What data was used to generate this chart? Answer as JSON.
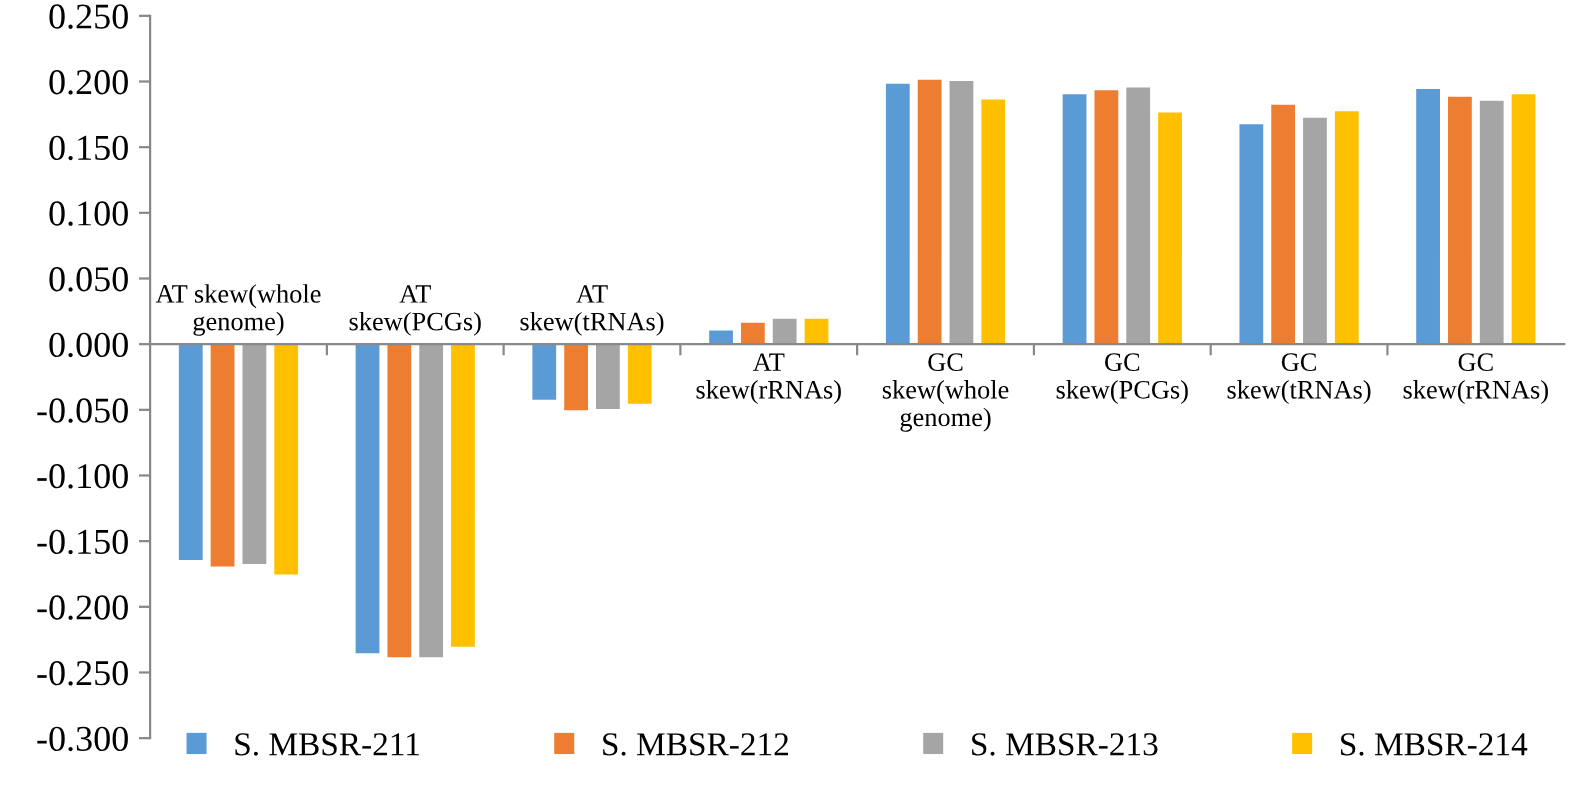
{
  "chart_data": {
    "type": "bar",
    "categories": [
      "AT skew(whole genome)",
      "AT skew(PCGs)",
      "AT skew(tRNAs)",
      "AT skew(rRNAs)",
      "GC skew(whole genome)",
      "GC skew(PCGs)",
      "GC skew(tRNAs)",
      "GC skew(rRNAs)"
    ],
    "series": [
      {
        "name": "S. MBSR-211",
        "color": "#5b9bd5",
        "values": [
          -0.165,
          -0.236,
          -0.043,
          0.011,
          0.199,
          0.191,
          0.168,
          0.195
        ]
      },
      {
        "name": "S. MBSR-212",
        "color": "#ed7d31",
        "values": [
          -0.17,
          -0.239,
          -0.051,
          0.017,
          0.202,
          0.194,
          0.183,
          0.189
        ]
      },
      {
        "name": "S. MBSR-213",
        "color": "#a5a5a5",
        "values": [
          -0.168,
          -0.239,
          -0.05,
          0.02,
          0.201,
          0.196,
          0.173,
          0.186
        ]
      },
      {
        "name": "S. MBSR-214",
        "color": "#ffc000",
        "values": [
          -0.176,
          -0.231,
          -0.046,
          0.02,
          0.187,
          0.177,
          0.178,
          0.191
        ]
      }
    ],
    "ylim": [
      -0.3,
      0.25
    ],
    "yticks": [
      {
        "value": -0.3,
        "label": "-0.300"
      },
      {
        "value": -0.25,
        "label": "-0.250"
      },
      {
        "value": -0.2,
        "label": "-0.200"
      },
      {
        "value": -0.15,
        "label": "-0.150"
      },
      {
        "value": -0.1,
        "label": "-0.100"
      },
      {
        "value": -0.05,
        "label": "-0.050"
      },
      {
        "value": 0,
        "label": "0.000"
      },
      {
        "value": 0.05,
        "label": "0.050"
      },
      {
        "value": 0.1,
        "label": "0.100"
      },
      {
        "value": 0.15,
        "label": "0.150"
      },
      {
        "value": 0.2,
        "label": "0.200"
      },
      {
        "value": 0.25,
        "label": "0.250"
      }
    ],
    "grid": false,
    "legend": "bottom"
  }
}
